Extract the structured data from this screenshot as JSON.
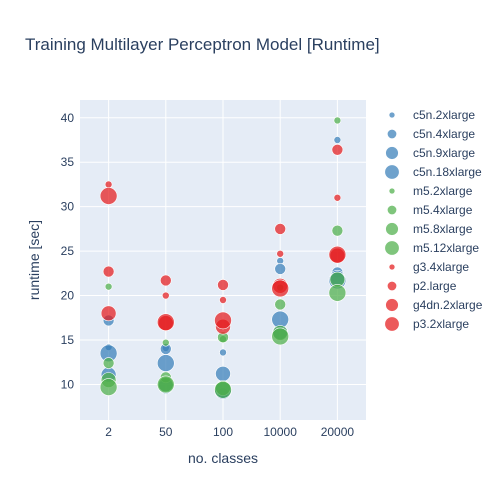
{
  "chart_data": {
    "type": "scatter",
    "title": "Training Multilayer Perceptron Model [Runtime]",
    "xlabel": "no. classes",
    "ylabel": "runtime [sec]",
    "categories": [
      "2",
      "50",
      "100",
      "10000",
      "20000"
    ],
    "ylim": [
      6,
      42
    ],
    "yticks": [
      10,
      15,
      20,
      25,
      30,
      35,
      40
    ],
    "grid": true,
    "legend_position": "right",
    "background": "#e5ecf6",
    "series": [
      {
        "name": "c5n.2xlarge",
        "color": "#377eb8",
        "size": 1,
        "values": [
          14.2,
          14.1,
          13.6,
          23.9,
          37.5
        ]
      },
      {
        "name": "c5n.4xlarge",
        "color": "#377eb8",
        "size": 2,
        "values": [
          17.2,
          14.0,
          9.0,
          23.0,
          22.6
        ]
      },
      {
        "name": "c5n.9xlarge",
        "color": "#377eb8",
        "size": 3,
        "values": [
          11.1,
          9.8,
          11.2,
          15.9,
          22.0
        ]
      },
      {
        "name": "c5n.18xlarge",
        "color": "#377eb8",
        "size": 4,
        "values": [
          13.5,
          12.4,
          9.3,
          17.3,
          21.7
        ]
      },
      {
        "name": "m5.2xlarge",
        "color": "#4daf4a",
        "size": 1,
        "values": [
          21.0,
          14.7,
          15.1,
          20.9,
          39.7
        ]
      },
      {
        "name": "m5.4xlarge",
        "color": "#4daf4a",
        "size": 2,
        "values": [
          12.4,
          10.8,
          15.3,
          19.0,
          27.3
        ]
      },
      {
        "name": "m5.8xlarge",
        "color": "#4daf4a",
        "size": 3,
        "values": [
          10.5,
          10.0,
          9.6,
          15.8,
          21.8
        ]
      },
      {
        "name": "m5.12xlarge",
        "color": "#4daf4a",
        "size": 4,
        "values": [
          9.7,
          10.0,
          9.4,
          15.4,
          20.3
        ]
      },
      {
        "name": "g3.4xlarge",
        "color": "#e41a1c",
        "size": 1,
        "values": [
          32.5,
          20.0,
          19.5,
          24.7,
          31.0
        ]
      },
      {
        "name": "p2.large",
        "color": "#e41a1c",
        "size": 2,
        "values": [
          22.7,
          21.7,
          21.2,
          27.5,
          36.4
        ]
      },
      {
        "name": "g4dn.2xlarge",
        "color": "#e41a1c",
        "size": 3,
        "values": [
          18.0,
          16.9,
          16.5,
          21.1,
          24.5
        ]
      },
      {
        "name": "p3.2xlarge",
        "color": "#e41a1c",
        "size": 4,
        "values": [
          31.2,
          17.0,
          17.2,
          20.8,
          24.6
        ]
      }
    ]
  }
}
